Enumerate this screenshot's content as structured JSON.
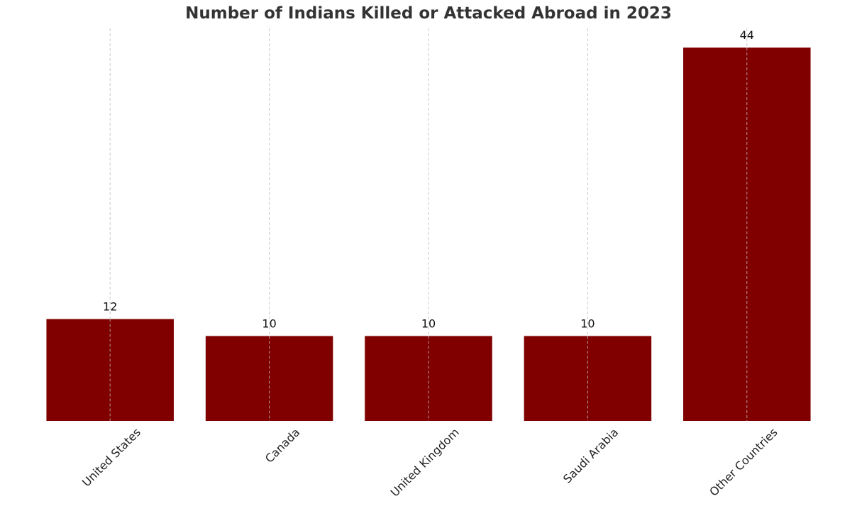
{
  "chart_data": {
    "type": "bar",
    "title": "Number of Indians Killed or Attacked Abroad in 2023",
    "xlabel": "",
    "ylabel": "",
    "categories": [
      "United States",
      "Canada",
      "United Kingdom",
      "Saudi Arabia",
      "Other Countries"
    ],
    "values": [
      12,
      10,
      10,
      10,
      44
    ],
    "data_labels": [
      "12",
      "10",
      "10",
      "10",
      "44"
    ],
    "ylim": [
      0,
      46
    ],
    "grid": "vertical dashed",
    "legend": "none",
    "bar_color": "#800000",
    "grid_color": "#c8c8c8"
  }
}
